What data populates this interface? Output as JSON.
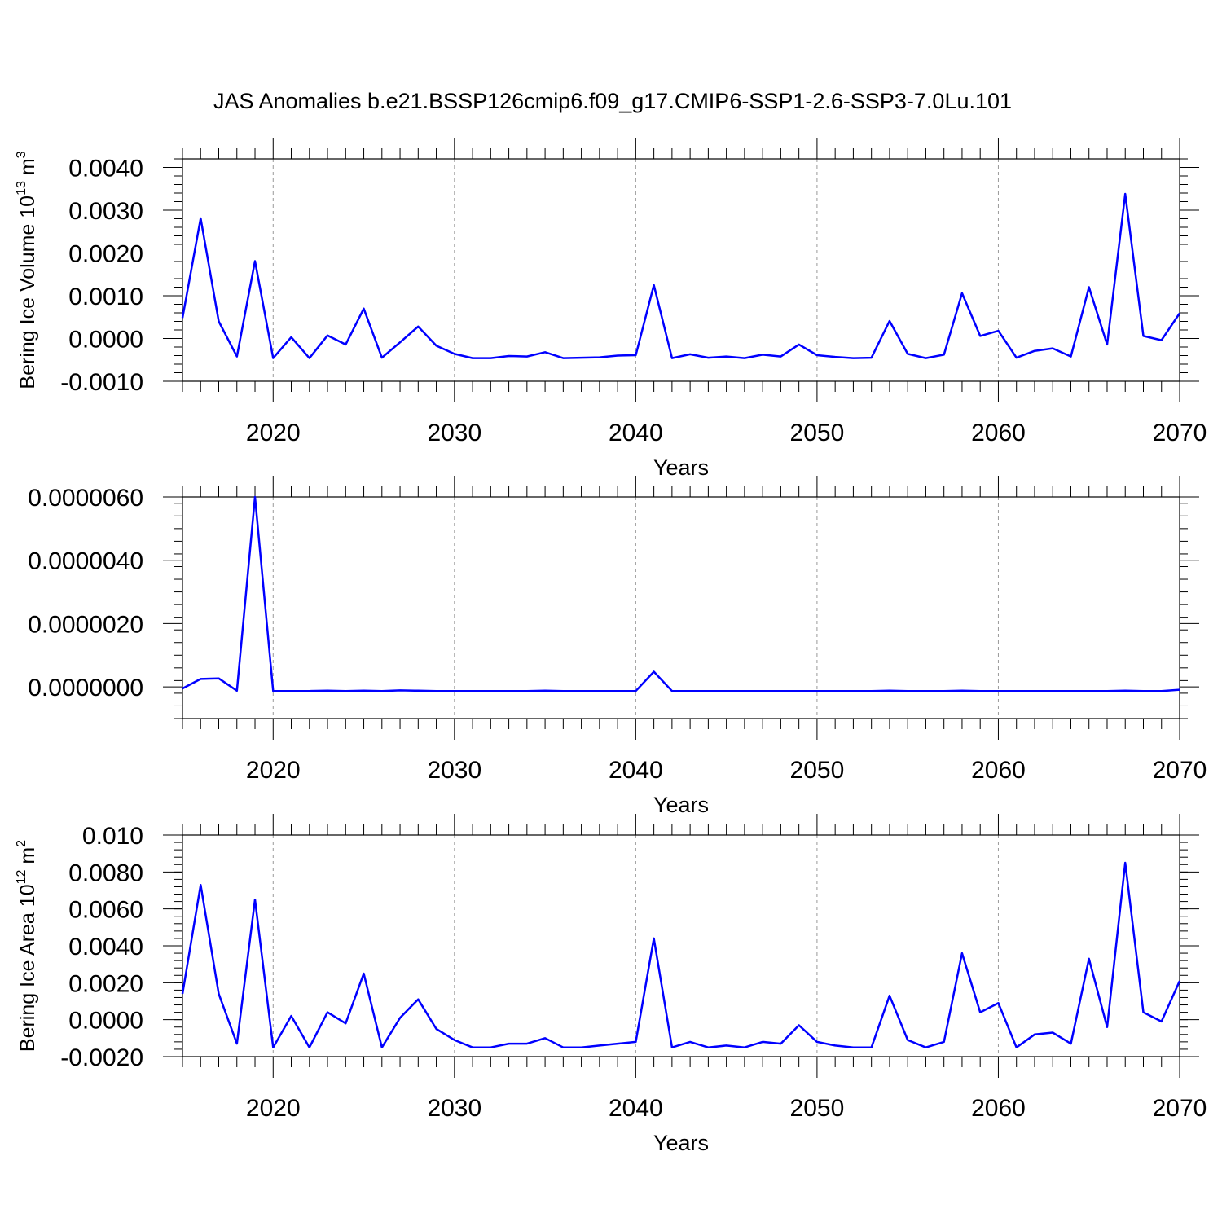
{
  "title": "JAS Anomalies b.e21.BSSP126cmip6.f09_g17.CMIP6-SSP1-2.6-SSP3-7.0Lu.101",
  "colors": {
    "series": "#0000ff",
    "axis": "#000000",
    "grid": "#999999"
  },
  "chart_data": [
    {
      "type": "line",
      "title": "",
      "xlabel": "Years",
      "ylabel": "Bering Ice Volume 10",
      "ylabel_exp": "13",
      "ylabel_unit": " m",
      "ylabel_unit_exp": "3",
      "xlim": [
        2015,
        2070
      ],
      "ylim": [
        -0.001,
        0.0042
      ],
      "x_ticks": [
        2020,
        2030,
        2040,
        2050,
        2060,
        2070
      ],
      "y_ticks": [
        -0.001,
        0,
        0.001,
        0.002,
        0.003,
        0.004
      ],
      "y_tick_labels": [
        "-0.0010",
        "0.0000",
        "0.0010",
        "0.0020",
        "0.0030",
        "0.0040"
      ],
      "grid": "vertical dashed at x ticks",
      "series": [
        {
          "x": [
            2015,
            2016,
            2017,
            2018,
            2019,
            2020,
            2021,
            2022,
            2023,
            2024,
            2025,
            2026,
            2027,
            2028,
            2029,
            2030,
            2031,
            2032,
            2033,
            2034,
            2035,
            2036,
            2037,
            2038,
            2039,
            2040,
            2041,
            2042,
            2043,
            2044,
            2045,
            2046,
            2047,
            2048,
            2049,
            2050,
            2051,
            2052,
            2053,
            2054,
            2055,
            2056,
            2057,
            2058,
            2059,
            2060,
            2061,
            2062,
            2063,
            2064,
            2065,
            2066,
            2067,
            2068,
            2069,
            2070
          ],
          "values": [
            0.00048,
            0.00281,
            0.0004,
            -0.00042,
            0.00181,
            -0.00046,
            3e-05,
            -0.00046,
            7e-05,
            -0.00014,
            0.0007,
            -0.00045,
            -9e-05,
            0.00028,
            -0.00017,
            -0.00036,
            -0.00046,
            -0.00046,
            -0.00041,
            -0.00042,
            -0.00032,
            -0.00046,
            -0.00045,
            -0.00044,
            -0.0004,
            -0.00039,
            0.00125,
            -0.00046,
            -0.00037,
            -0.00045,
            -0.00042,
            -0.00046,
            -0.00038,
            -0.00042,
            -0.00014,
            -0.00039,
            -0.00043,
            -0.00046,
            -0.00045,
            0.00041,
            -0.00036,
            -0.00046,
            -0.00038,
            0.00106,
            6e-05,
            0.00018,
            -0.00045,
            -0.00029,
            -0.00023,
            -0.00042,
            0.0012,
            -0.00014,
            0.00338,
            6e-05,
            -4e-05,
            0.00059
          ]
        }
      ]
    },
    {
      "type": "line",
      "title": "",
      "xlabel": "Years",
      "ylabel": "",
      "xlim": [
        2015,
        2070
      ],
      "ylim": [
        -1e-06,
        6e-06
      ],
      "x_ticks": [
        2020,
        2030,
        2040,
        2050,
        2060,
        2070
      ],
      "y_ticks": [
        0,
        2e-06,
        4e-06,
        6e-06
      ],
      "y_tick_labels": [
        "0.0000000",
        "0.0000020",
        "0.0000040",
        "0.0000060"
      ],
      "grid": "vertical dashed at x ticks",
      "series": [
        {
          "x": [
            2015,
            2016,
            2017,
            2018,
            2019,
            2020,
            2021,
            2022,
            2023,
            2024,
            2025,
            2026,
            2027,
            2028,
            2029,
            2030,
            2031,
            2032,
            2033,
            2034,
            2035,
            2036,
            2037,
            2038,
            2039,
            2040,
            2041,
            2042,
            2043,
            2044,
            2045,
            2046,
            2047,
            2048,
            2049,
            2050,
            2051,
            2052,
            2053,
            2054,
            2055,
            2056,
            2057,
            2058,
            2059,
            2060,
            2061,
            2062,
            2063,
            2064,
            2065,
            2066,
            2067,
            2068,
            2069,
            2070
          ],
          "values": [
            -5e-08,
            2.5e-07,
            2.7e-07,
            -1.2e-07,
            6e-06,
            -1.3e-07,
            -1.3e-07,
            -1.3e-07,
            -1.2e-07,
            -1.3e-07,
            -1.2e-07,
            -1.3e-07,
            -1.1e-07,
            -1.2e-07,
            -1.3e-07,
            -1.3e-07,
            -1.3e-07,
            -1.3e-07,
            -1.3e-07,
            -1.3e-07,
            -1.2e-07,
            -1.3e-07,
            -1.3e-07,
            -1.3e-07,
            -1.3e-07,
            -1.3e-07,
            4.8e-07,
            -1.3e-07,
            -1.3e-07,
            -1.3e-07,
            -1.3e-07,
            -1.3e-07,
            -1.3e-07,
            -1.3e-07,
            -1.3e-07,
            -1.3e-07,
            -1.3e-07,
            -1.3e-07,
            -1.3e-07,
            -1.2e-07,
            -1.3e-07,
            -1.3e-07,
            -1.3e-07,
            -1.2e-07,
            -1.3e-07,
            -1.3e-07,
            -1.3e-07,
            -1.3e-07,
            -1.3e-07,
            -1.3e-07,
            -1.3e-07,
            -1.3e-07,
            -1.2e-07,
            -1.3e-07,
            -1.3e-07,
            -9e-08
          ]
        }
      ]
    },
    {
      "type": "line",
      "title": "",
      "xlabel": "Years",
      "ylabel": "Bering Ice Area 10",
      "ylabel_exp": "12",
      "ylabel_unit": " m",
      "ylabel_unit_exp": "2",
      "xlim": [
        2015,
        2070
      ],
      "ylim": [
        -0.002,
        0.01
      ],
      "x_ticks": [
        2020,
        2030,
        2040,
        2050,
        2060,
        2070
      ],
      "y_ticks": [
        -0.002,
        0,
        0.002,
        0.004,
        0.006,
        0.008,
        0.01
      ],
      "y_tick_labels": [
        "-0.0020",
        "0.0000",
        "0.0020",
        "0.0040",
        "0.0060",
        "0.0080",
        "0.010"
      ],
      "grid": "vertical dashed at x ticks",
      "series": [
        {
          "x": [
            2015,
            2016,
            2017,
            2018,
            2019,
            2020,
            2021,
            2022,
            2023,
            2024,
            2025,
            2026,
            2027,
            2028,
            2029,
            2030,
            2031,
            2032,
            2033,
            2034,
            2035,
            2036,
            2037,
            2038,
            2039,
            2040,
            2041,
            2042,
            2043,
            2044,
            2045,
            2046,
            2047,
            2048,
            2049,
            2050,
            2051,
            2052,
            2053,
            2054,
            2055,
            2056,
            2057,
            2058,
            2059,
            2060,
            2061,
            2062,
            2063,
            2064,
            2065,
            2066,
            2067,
            2068,
            2069,
            2070
          ],
          "values": [
            0.0014,
            0.0073,
            0.0014,
            -0.0013,
            0.0065,
            -0.0015,
            0.0002,
            -0.0015,
            0.0004,
            -0.0002,
            0.0025,
            -0.0015,
            0.0001,
            0.0011,
            -0.0005,
            -0.0011,
            -0.0015,
            -0.0015,
            -0.0013,
            -0.0013,
            -0.001,
            -0.0015,
            -0.0015,
            -0.0014,
            -0.0013,
            -0.0012,
            0.0044,
            -0.0015,
            -0.0012,
            -0.0015,
            -0.0014,
            -0.0015,
            -0.0012,
            -0.0013,
            -0.0003,
            -0.0012,
            -0.0014,
            -0.0015,
            -0.0015,
            0.0013,
            -0.0011,
            -0.0015,
            -0.0012,
            0.0036,
            0.0004,
            0.0009,
            -0.0015,
            -0.0008,
            -0.0007,
            -0.0013,
            0.0033,
            -0.0004,
            0.0085,
            0.0004,
            -0.0001,
            0.0021
          ]
        }
      ]
    }
  ]
}
